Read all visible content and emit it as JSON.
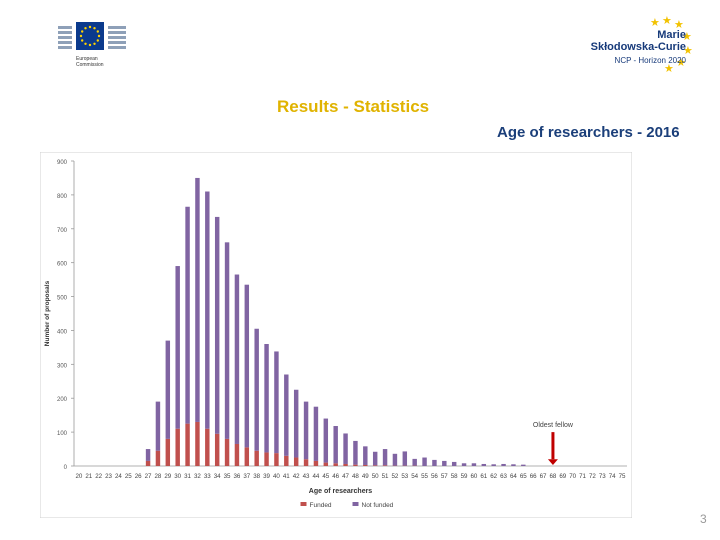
{
  "header": {
    "ec_logo": {
      "line1": "European",
      "line2": "Commission"
    },
    "mc_logo": {
      "name_line1": "Marie",
      "name_line2": "Skłodowska-Curie",
      "subtitle": "NCP - Horizon 2020"
    },
    "slide_title": "Results - Statistics",
    "chart_title": "Age of researchers - 2016"
  },
  "colors": {
    "funded": "#c0504d",
    "not_funded": "#8064a2",
    "title": "#e0b300",
    "heading": "#1b3f7a",
    "arrow": "#c00000"
  },
  "chart_data": {
    "type": "bar",
    "stacked": true,
    "title": "",
    "xlabel": "Age of researchers",
    "ylabel": "Number of proposals",
    "ylim": [
      0,
      900
    ],
    "yticks": [
      0,
      100,
      200,
      300,
      400,
      500,
      600,
      700,
      800,
      900
    ],
    "grid": false,
    "legend": "bottom",
    "categories": [
      "20",
      "21",
      "22",
      "23",
      "24",
      "25",
      "26",
      "27",
      "28",
      "29",
      "30",
      "31",
      "32",
      "33",
      "34",
      "35",
      "36",
      "37",
      "38",
      "39",
      "40",
      "41",
      "42",
      "43",
      "44",
      "45",
      "46",
      "47",
      "48",
      "49",
      "50",
      "51",
      "52",
      "53",
      "54",
      "55",
      "56",
      "57",
      "58",
      "59",
      "60",
      "61",
      "62",
      "63",
      "64",
      "65",
      "66",
      "67",
      "68",
      "69",
      "70",
      "71",
      "72",
      "73",
      "74",
      "75"
    ],
    "series": [
      {
        "name": "Funded",
        "values": [
          0,
          0,
          0,
          0,
          0,
          0,
          0,
          15,
          45,
          80,
          110,
          125,
          130,
          110,
          95,
          80,
          65,
          55,
          45,
          40,
          38,
          30,
          25,
          20,
          15,
          10,
          8,
          6,
          4,
          3,
          2,
          2,
          1,
          1,
          1,
          0,
          0,
          0,
          0,
          0,
          0,
          0,
          0,
          0,
          0,
          0,
          0,
          0,
          0,
          0,
          0,
          0,
          0,
          0,
          0,
          0
        ]
      },
      {
        "name": "Not funded",
        "values": [
          0,
          0,
          0,
          0,
          0,
          0,
          0,
          35,
          145,
          290,
          480,
          640,
          720,
          700,
          640,
          580,
          500,
          480,
          360,
          320,
          300,
          240,
          200,
          170,
          160,
          130,
          110,
          90,
          70,
          55,
          40,
          48,
          35,
          42,
          20,
          25,
          18,
          15,
          12,
          8,
          8,
          6,
          5,
          6,
          5,
          4,
          0,
          0,
          0,
          0,
          0,
          0,
          0,
          0,
          0,
          0
        ]
      }
    ],
    "annotation": {
      "text": "Oldest fellow",
      "category": "68"
    }
  },
  "page_number": "3"
}
